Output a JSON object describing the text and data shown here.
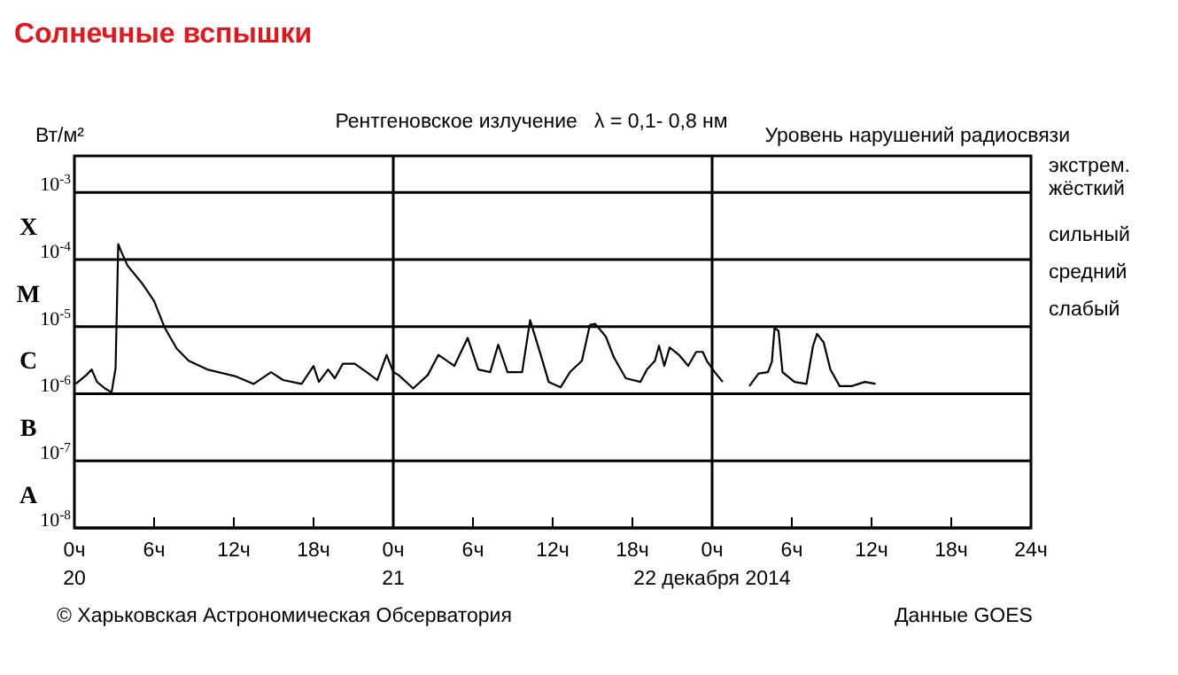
{
  "chart_data": {
    "type": "line",
    "title": "Солнечные вспышки",
    "subtitle": "Рентгеновское излучение   λ = 0,1- 0,8 нм",
    "ylabel": "Вт/м²",
    "y2label": "Уровень нарушений радиосвязи",
    "log": "y",
    "grid": "y",
    "marker": "none",
    "line_style": "solid",
    "xlim": [
      "2014-12-20T00:00",
      "2014-12-23T00:00"
    ],
    "xticks": [
      {
        "value": "2014-12-20T00:00",
        "label": "0ч\n20"
      },
      {
        "value": "2014-12-20T06:00",
        "label": "6ч"
      },
      {
        "value": "2014-12-20T12:00",
        "label": "12ч"
      },
      {
        "value": "2014-12-20T18:00",
        "label": "18ч"
      },
      {
        "value": "2014-12-21T00:00",
        "label": "0ч\n21"
      },
      {
        "value": "2014-12-21T06:00",
        "label": "6ч"
      },
      {
        "value": "2014-12-21T12:00",
        "label": "12ч"
      },
      {
        "value": "2014-12-21T18:00",
        "label": "18ч"
      },
      {
        "value": "2014-12-22T00:00",
        "label": "0ч\n22 декабря 2014"
      },
      {
        "value": "2014-12-22T06:00",
        "label": "6ч"
      },
      {
        "value": "2014-12-22T12:00",
        "label": "12ч"
      },
      {
        "value": "2014-12-22T18:00",
        "label": "18ч"
      },
      {
        "value": "2014-12-23T00:00",
        "label": "24ч"
      }
    ],
    "ylim": [
      1e-08,
      0.0035
    ],
    "yticks": [
      {
        "value": 1e-08,
        "label": "10$^{-8}$"
      },
      {
        "value": 1e-07,
        "label": "10$^{-7}$"
      },
      {
        "value": 1e-06,
        "label": "10$^{-6}$"
      },
      {
        "value": 1e-05,
        "label": "10$^{-5}$"
      },
      {
        "value": 0.0001,
        "label": "10$^{-4}$"
      },
      {
        "value": 0.001,
        "label": "10$^{-3}$"
      }
    ],
    "ref_lines": [
      {
        "axis": "x",
        "value": "2014-12-21T00:00"
      },
      {
        "axis": "x",
        "value": "2014-12-22T00:00"
      }
    ],
    "annotations": [
      "© Харьковская Астрономическая Обсерватория",
      "Данные GOES",
      "X",
      "M",
      "C",
      "B",
      "A",
      "экстрем.",
      "жёсткий",
      "сильный",
      "средний",
      "слабый"
    ],
    "series": [
      {
        "color": "#000000",
        "x": [
          "2014-12-20T00:06",
          "2014-12-20T00:54",
          "2014-12-20T01:18",
          "2014-12-20T01:42",
          "2014-12-20T02:18",
          "2014-12-20T02:48",
          "2014-12-20T03:06",
          "2014-12-20T03:18",
          "2014-12-20T03:30",
          "2014-12-20T04:00",
          "2014-12-20T05:06",
          "2014-12-20T06:00",
          "2014-12-20T06:48",
          "2014-12-20T07:42",
          "2014-12-20T08:36",
          "2014-12-20T10:00",
          "2014-12-20T12:12",
          "2014-12-20T13:30",
          "2014-12-20T14:48",
          "2014-12-20T15:42",
          "2014-12-20T17:06",
          "2014-12-20T18:00",
          "2014-12-20T18:24",
          "2014-12-20T19:06",
          "2014-12-20T19:36",
          "2014-12-20T20:12",
          "2014-12-20T21:06",
          "2014-12-20T22:00",
          "2014-12-20T22:48",
          "2014-12-20T23:30",
          "2014-12-21T00:00",
          "2014-12-21T00:24",
          "2014-12-21T01:30",
          "2014-12-21T02:36",
          "2014-12-21T03:24",
          "2014-12-21T04:36",
          "2014-12-21T05:36",
          "2014-12-21T06:24",
          "2014-12-21T07:18",
          "2014-12-21T07:54",
          "2014-12-21T08:36",
          "2014-12-21T09:42",
          "2014-12-21T10:18",
          "2014-12-21T11:06",
          "2014-12-21T11:42",
          "2014-12-21T12:36",
          "2014-12-21T13:18",
          "2014-12-21T14:12",
          "2014-12-21T14:48",
          "2014-12-21T15:12",
          "2014-12-21T16:00",
          "2014-12-21T16:36",
          "2014-12-21T17:30",
          "2014-12-21T18:36",
          "2014-12-21T19:06",
          "2014-12-21T19:42",
          "2014-12-21T20:00",
          "2014-12-21T20:24",
          "2014-12-21T20:48",
          "2014-12-21T21:30",
          "2014-12-21T22:12",
          "2014-12-21T22:48",
          "2014-12-21T23:18",
          "2014-12-21T23:36",
          "2014-12-22T00:12",
          "2014-12-22T00:48",
          "2014-12-22T01:48",
          "2014-12-22T02:48",
          "2014-12-22T03:30",
          "2014-12-22T04:12",
          "2014-12-22T04:30",
          "2014-12-22T04:42",
          "2014-12-22T05:00",
          "2014-12-22T05:18",
          "2014-12-22T06:12",
          "2014-12-22T07:06",
          "2014-12-22T07:36",
          "2014-12-22T07:54",
          "2014-12-22T08:24",
          "2014-12-22T08:54",
          "2014-12-22T09:36",
          "2014-12-22T10:30",
          "2014-12-22T11:30",
          "2014-12-22T12:18"
        ],
        "values": [
          1.4e-06,
          1.9e-06,
          2.3e-06,
          1.5e-06,
          1.2e-06,
          1.05e-06,
          2.4e-06,
          0.00017,
          0.000135,
          8.1e-05,
          4.4e-05,
          2.4e-05,
          9.6e-06,
          4.7e-06,
          3.1e-06,
          2.3e-06,
          1.8e-06,
          1.4e-06,
          2.1e-06,
          1.6e-06,
          1.4e-06,
          2.6e-06,
          1.5e-06,
          2.3e-06,
          1.7e-06,
          2.8e-06,
          2.8e-06,
          2.1e-06,
          1.6e-06,
          3.8e-06,
          2.1e-06,
          1.9e-06,
          1.2e-06,
          1.9e-06,
          3.8e-06,
          2.6e-06,
          6.8e-06,
          2.3e-06,
          2.1e-06,
          5.4e-06,
          2.1e-06,
          2.1e-06,
          1.25e-05,
          3.8e-06,
          1.5e-06,
          1.25e-06,
          2.1e-06,
          3.1e-06,
          1.06e-05,
          1.1e-05,
          7.1e-06,
          3.5e-06,
          1.7e-06,
          1.5e-06,
          2.3e-06,
          3.1e-06,
          5.2e-06,
          2.6e-06,
          4.9e-06,
          3.8e-06,
          2.6e-06,
          4.2e-06,
          4.2e-06,
          3.1e-06,
          2.1e-06,
          1.5e-06,
          null,
          1.3e-06,
          2e-06,
          2.1e-06,
          3e-06,
          9.6e-06,
          8.6e-06,
          2.1e-06,
          1.5e-06,
          1.4e-06,
          5.2e-06,
          7.8e-06,
          5.8e-06,
          2.3e-06,
          1.3e-06,
          1.3e-06,
          1.5e-06,
          1.4e-06
        ]
      }
    ]
  }
}
